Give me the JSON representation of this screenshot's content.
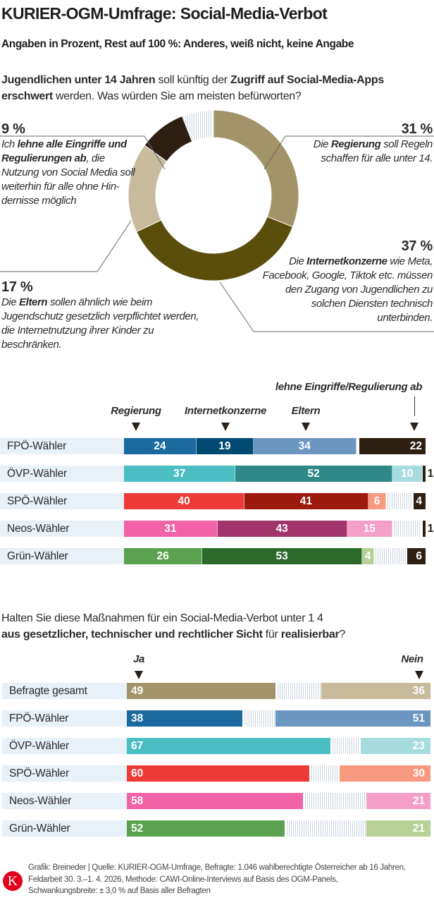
{
  "title": "KURIER-OGM-Umfrage: Social-Media-Verbot",
  "subtitle": "Angaben in Prozent, Rest auf 100 %: Anderes, weiß nicht, keine Angabe",
  "question1": [
    {
      "t": "Jugendlichen unter 14 Jahren",
      "b": true
    },
    {
      "t": " soll künftig der ",
      "b": false
    },
    {
      "t": "Zugriff auf Social-Media-Apps",
      "b": true
    },
    {
      "t": " ",
      "b": false
    },
    {
      "t": "erschwert",
      "b": true
    },
    {
      "t": " werden. Was würden Sie am meisten befürworten?",
      "b": false
    }
  ],
  "chart_data": [
    {
      "type": "pie",
      "donut": true,
      "slices": [
        {
          "key": "regierung",
          "value": 31,
          "color": "#a39368",
          "pct": "31 %",
          "text": [
            {
              "t": "Die ",
              "b": false
            },
            {
              "t": "Regierung",
              "b": true
            },
            {
              "t": " soll Regeln schaffen für alle unter 14.",
              "b": false
            }
          ]
        },
        {
          "key": "internet",
          "value": 37,
          "color": "#5b4e0c",
          "pct": "37 %",
          "text": [
            {
              "t": "Die ",
              "b": false
            },
            {
              "t": "Internetkonzerne",
              "b": true
            },
            {
              "t": " wie Meta, Facebook, Google, Tiktok etc. müssen den Zugang von Jugendlichen zu solchen Diensten technisch unterbinden.",
              "b": false
            }
          ]
        },
        {
          "key": "eltern",
          "value": 17,
          "color": "#c7bb9c",
          "pct": "17 %",
          "text": [
            {
              "t": "Die ",
              "b": false
            },
            {
              "t": "Eltern",
              "b": true
            },
            {
              "t": " sollen ähnlich wie beim Jugendschutz gesetzlich verpflichtet werden, die Internetnutzung ihrer Kinder zu beschränken.",
              "b": false
            }
          ]
        },
        {
          "key": "ablehnen",
          "value": 9,
          "color": "#2d2013",
          "pct": "9 %",
          "text": [
            {
              "t": "Ich ",
              "b": false
            },
            {
              "t": "lehne alle Eingriffe und Regulierungen ab",
              "b": true
            },
            {
              "t": ", die Nutzung von Social Media soll weiterhin für alle ohne Hin-dernisse möglich",
              "b": false
            }
          ]
        },
        {
          "key": "rest",
          "value": 6,
          "color": "hatched"
        }
      ]
    },
    {
      "type": "bar",
      "stacked": true,
      "orientation": "horizontal",
      "markers": [
        "Regierung",
        "Internetkonzerne",
        "Eltern",
        "lehne Eingriffe/Regulierung ab"
      ],
      "rows": [
        {
          "label": "FPÖ-Wähler",
          "values": [
            24,
            19,
            34,
            22
          ],
          "colors": [
            "#1a6aa0",
            "#004a74",
            "#6b96c0",
            "#2d2013"
          ]
        },
        {
          "label": "ÖVP-Wähler",
          "values": [
            37,
            52,
            10,
            1
          ],
          "colors": [
            "#4bbec4",
            "#2e8887",
            "#a7dcdf",
            "#2d2013"
          ]
        },
        {
          "label": "SPÖ-Wähler",
          "values": [
            40,
            41,
            6,
            4
          ],
          "colors": [
            "#ee3b37",
            "#9b190d",
            "#f79a80",
            "#2d2013"
          ]
        },
        {
          "label": "Neos-Wähler",
          "values": [
            31,
            43,
            15,
            1
          ],
          "colors": [
            "#f162a6",
            "#a1356b",
            "#f59ec8",
            "#2d2013"
          ]
        },
        {
          "label": "Grün-Wähler",
          "values": [
            26,
            53,
            4,
            6
          ],
          "colors": [
            "#5aa24f",
            "#2b6a2b",
            "#b6d098",
            "#2d2013"
          ]
        }
      ]
    },
    {
      "type": "bar",
      "stacked": true,
      "orientation": "horizontal",
      "markers": [
        "Ja",
        "Nein"
      ],
      "rows": [
        {
          "label": "Befragte gesamt",
          "values": [
            49,
            36
          ],
          "colors": [
            "#a39368",
            "#c7bb9c"
          ]
        },
        {
          "label": "FPÖ-Wähler",
          "values": [
            38,
            51
          ],
          "colors": [
            "#1a6aa0",
            "#6b96c0"
          ]
        },
        {
          "label": "ÖVP-Wähler",
          "values": [
            67,
            23
          ],
          "colors": [
            "#4bbec4",
            "#a7dcdf"
          ]
        },
        {
          "label": "SPÖ-Wähler",
          "values": [
            60,
            30
          ],
          "colors": [
            "#ee3b37",
            "#f79a80"
          ]
        },
        {
          "label": "Neos-Wähler",
          "values": [
            58,
            21
          ],
          "colors": [
            "#f162a6",
            "#f59ec8"
          ]
        },
        {
          "label": "Grün-Wähler",
          "values": [
            52,
            21
          ],
          "colors": [
            "#5aa24f",
            "#b6d098"
          ]
        }
      ]
    }
  ],
  "question2": [
    {
      "t": "Halten Sie diese Maßnahmen für ein Social-Media-Verbot unter 1 4",
      "b": false
    },
    {
      "t": "\n",
      "b": false
    },
    {
      "t": "aus gesetzlicher, technischer und rechtlicher Sicht",
      "b": true
    },
    {
      "t": " für ",
      "b": false
    },
    {
      "t": "realisierbar",
      "b": true
    },
    {
      "t": "?",
      "b": false
    }
  ],
  "footer": {
    "logo": "K",
    "lines": [
      "Grafik: Breineder | Quelle: KURIER-OGM-Umfrage, Befragte: 1.046 wahlberechtigte Österreicher ab 16 Jahren,",
      "Feldarbeit 30. 3.–1. 4. 2026, Methode: CAWI-Online-Interviews auf Basis des OGM-Panels,",
      "Schwankungsbreite: ± 3,0 % auf Basis aller Befragten"
    ]
  }
}
